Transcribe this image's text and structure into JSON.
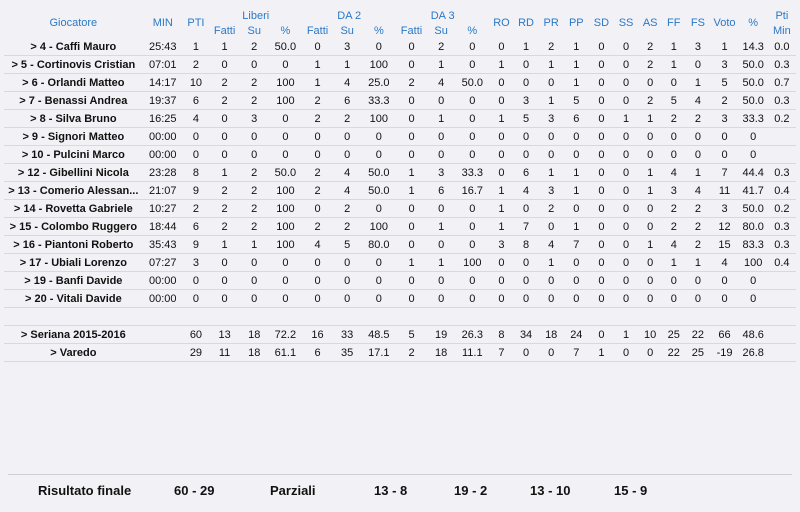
{
  "header": {
    "giocatore": "Giocatore",
    "min": "MIN",
    "pti": "PTI",
    "liberi": "Liberi",
    "da2": "DA 2",
    "da3": "DA 3",
    "fatti": "Fatti",
    "su": "Su",
    "pct": "%",
    "ro": "RO",
    "rd": "RD",
    "pr": "PR",
    "pp": "PP",
    "sd": "SD",
    "ss": "SS",
    "as": "AS",
    "ff": "FF",
    "fs": "FS",
    "voto": "Voto",
    "pti_min_1": "Pti",
    "pti_min_2": "Min"
  },
  "players": [
    [
      "> 4 - Caffi Mauro",
      "25:43",
      "1",
      "1",
      "2",
      "50.0",
      "0",
      "3",
      "0",
      "0",
      "2",
      "0",
      "0",
      "1",
      "2",
      "1",
      "0",
      "0",
      "2",
      "1",
      "3",
      "1",
      "14.3",
      "0.0"
    ],
    [
      "> 5 - Cortinovis Cristian",
      "07:01",
      "2",
      "0",
      "0",
      "0",
      "1",
      "1",
      "100",
      "0",
      "1",
      "0",
      "1",
      "0",
      "1",
      "1",
      "0",
      "0",
      "2",
      "1",
      "0",
      "3",
      "50.0",
      "0.3"
    ],
    [
      "> 6 - Orlandi Matteo",
      "14:17",
      "10",
      "2",
      "2",
      "100",
      "1",
      "4",
      "25.0",
      "2",
      "4",
      "50.0",
      "0",
      "0",
      "0",
      "1",
      "0",
      "0",
      "0",
      "0",
      "1",
      "5",
      "50.0",
      "0.7"
    ],
    [
      "> 7 - Benassi Andrea",
      "19:37",
      "6",
      "2",
      "2",
      "100",
      "2",
      "6",
      "33.3",
      "0",
      "0",
      "0",
      "0",
      "3",
      "1",
      "5",
      "0",
      "0",
      "2",
      "5",
      "4",
      "2",
      "50.0",
      "0.3"
    ],
    [
      "> 8 - Silva Bruno",
      "16:25",
      "4",
      "0",
      "3",
      "0",
      "2",
      "2",
      "100",
      "0",
      "1",
      "0",
      "1",
      "5",
      "3",
      "6",
      "0",
      "1",
      "1",
      "2",
      "2",
      "3",
      "33.3",
      "0.2"
    ],
    [
      "> 9 - Signori Matteo",
      "00:00",
      "0",
      "0",
      "0",
      "0",
      "0",
      "0",
      "0",
      "0",
      "0",
      "0",
      "0",
      "0",
      "0",
      "0",
      "0",
      "0",
      "0",
      "0",
      "0",
      "0",
      "0",
      ""
    ],
    [
      "> 10 - Pulcini Marco",
      "00:00",
      "0",
      "0",
      "0",
      "0",
      "0",
      "0",
      "0",
      "0",
      "0",
      "0",
      "0",
      "0",
      "0",
      "0",
      "0",
      "0",
      "0",
      "0",
      "0",
      "0",
      "0",
      ""
    ],
    [
      "> 12 - Gibellini Nicola",
      "23:28",
      "8",
      "1",
      "2",
      "50.0",
      "2",
      "4",
      "50.0",
      "1",
      "3",
      "33.3",
      "0",
      "6",
      "1",
      "1",
      "0",
      "0",
      "1",
      "4",
      "1",
      "7",
      "44.4",
      "0.3"
    ],
    [
      "> 13 - Comerio Alessan...",
      "21:07",
      "9",
      "2",
      "2",
      "100",
      "2",
      "4",
      "50.0",
      "1",
      "6",
      "16.7",
      "1",
      "4",
      "3",
      "1",
      "0",
      "0",
      "1",
      "3",
      "4",
      "11",
      "41.7",
      "0.4"
    ],
    [
      "> 14 - Rovetta Gabriele",
      "10:27",
      "2",
      "2",
      "2",
      "100",
      "0",
      "2",
      "0",
      "0",
      "0",
      "0",
      "1",
      "0",
      "2",
      "0",
      "0",
      "0",
      "0",
      "2",
      "2",
      "3",
      "50.0",
      "0.2"
    ],
    [
      "> 15 - Colombo Ruggero",
      "18:44",
      "6",
      "2",
      "2",
      "100",
      "2",
      "2",
      "100",
      "0",
      "1",
      "0",
      "1",
      "7",
      "0",
      "1",
      "0",
      "0",
      "0",
      "2",
      "2",
      "12",
      "80.0",
      "0.3"
    ],
    [
      "> 16 - Piantoni Roberto",
      "35:43",
      "9",
      "1",
      "1",
      "100",
      "4",
      "5",
      "80.0",
      "0",
      "0",
      "0",
      "3",
      "8",
      "4",
      "7",
      "0",
      "0",
      "1",
      "4",
      "2",
      "15",
      "83.3",
      "0.3"
    ],
    [
      "> 17 - Ubiali Lorenzo",
      "07:27",
      "3",
      "0",
      "0",
      "0",
      "0",
      "0",
      "0",
      "1",
      "1",
      "100",
      "0",
      "0",
      "1",
      "0",
      "0",
      "0",
      "0",
      "1",
      "1",
      "4",
      "100",
      "0.4"
    ],
    [
      "> 19 - Banfi Davide",
      "00:00",
      "0",
      "0",
      "0",
      "0",
      "0",
      "0",
      "0",
      "0",
      "0",
      "0",
      "0",
      "0",
      "0",
      "0",
      "0",
      "0",
      "0",
      "0",
      "0",
      "0",
      "0",
      ""
    ],
    [
      "> 20 - Vitali Davide",
      "00:00",
      "0",
      "0",
      "0",
      "0",
      "0",
      "0",
      "0",
      "0",
      "0",
      "0",
      "0",
      "0",
      "0",
      "0",
      "0",
      "0",
      "0",
      "0",
      "0",
      "0",
      "0",
      ""
    ]
  ],
  "teams": [
    [
      "> Seriana 2015-2016",
      "",
      "60",
      "13",
      "18",
      "72.2",
      "16",
      "33",
      "48.5",
      "5",
      "19",
      "26.3",
      "8",
      "34",
      "18",
      "24",
      "0",
      "1",
      "10",
      "25",
      "22",
      "66",
      "48.6",
      ""
    ],
    [
      "> Varedo",
      "",
      "29",
      "11",
      "18",
      "61.1",
      "6",
      "35",
      "17.1",
      "2",
      "18",
      "11.1",
      "7",
      "0",
      "0",
      "7",
      "1",
      "0",
      "0",
      "22",
      "25",
      "-19",
      "26.8",
      ""
    ]
  ],
  "footer": {
    "risultato_label": "Risultato finale",
    "risultato": "60 - 29",
    "parziali_label": "Parziali",
    "p1": "13 - 8",
    "p2": "19 - 2",
    "p3": "13 - 10",
    "p4": "15 - 9"
  }
}
